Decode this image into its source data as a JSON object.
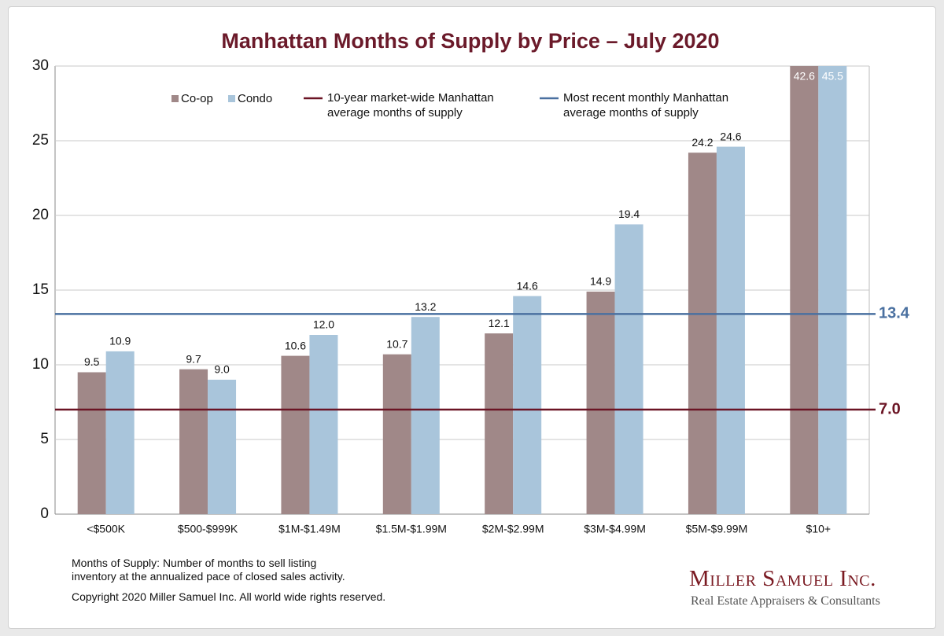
{
  "chart_data": {
    "type": "bar",
    "title": "Manhattan Months of Supply by Price – July 2020",
    "categories": [
      "<$500K",
      "$500-$999K",
      "$1M-$1.49M",
      "$1.5M-$1.99M",
      "$2M-$2.99M",
      "$3M-$4.99M",
      "$5M-$9.99M",
      "$10+"
    ],
    "series": [
      {
        "name": "Co-op",
        "color": "#a08888",
        "values": [
          9.5,
          9.7,
          10.6,
          10.7,
          12.1,
          14.9,
          24.2,
          42.6
        ],
        "value_labels": [
          "9.5",
          "9.7",
          "10.6",
          "10.7",
          "12.1",
          "14.9",
          "24.2",
          "42.6"
        ]
      },
      {
        "name": "Condo",
        "color": "#a9c5db",
        "values": [
          10.9,
          9.0,
          12.0,
          13.2,
          14.6,
          19.4,
          24.6,
          45.5
        ],
        "value_labels": [
          "10.9",
          "9.0",
          "12.0",
          "13.2",
          "14.6",
          "19.4",
          "24.6",
          "45.5"
        ]
      }
    ],
    "reference_lines": [
      {
        "name": "10-year market-wide Manhattan\naverage months of supply",
        "value": 7.0,
        "label": "7.0",
        "color": "#6b1424"
      },
      {
        "name": "Most recent monthly Manhattan\naverage months of supply",
        "value": 13.4,
        "label": "13.4",
        "color": "#4a70a0"
      }
    ],
    "ylim": [
      0,
      30
    ],
    "yticks": [
      0,
      5,
      10,
      15,
      20,
      25,
      30
    ],
    "grid": true,
    "footnote": "Months of Supply: Number of months to sell listing\ninventory at the annualized pace of closed sales activity.",
    "copyright": "Copyright 2020 Miller Samuel Inc.  All world wide rights reserved.",
    "brand": "Miller Samuel Inc.",
    "brand_tagline": "Real Estate Appraisers & Consultants"
  }
}
